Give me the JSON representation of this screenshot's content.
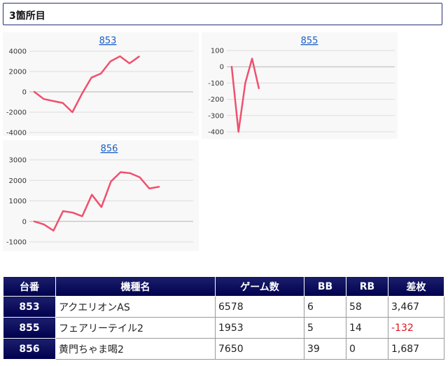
{
  "header": {
    "title": "3箇所目"
  },
  "charts": [
    {
      "link": "853",
      "y_ticks": [
        "4000",
        "2000",
        "0",
        "-2000",
        "-4000"
      ],
      "chart_data": {
        "type": "line",
        "title": "853",
        "ylim": [
          -4000,
          4000
        ],
        "values": [
          0,
          -700,
          -900,
          -1100,
          -2000,
          -200,
          1400,
          1800,
          3000,
          3500,
          2800,
          3467
        ]
      }
    },
    {
      "link": "855",
      "y_ticks": [
        "100",
        "0",
        "-100",
        "-200",
        "-300",
        "-400"
      ],
      "chart_data": {
        "type": "line",
        "title": "855",
        "ylim": [
          -400,
          100
        ],
        "values": [
          0,
          -400,
          -100,
          50,
          -132
        ]
      }
    },
    {
      "link": "856",
      "y_ticks": [
        "3000",
        "2000",
        "1000",
        "0",
        "-1000"
      ],
      "chart_data": {
        "type": "line",
        "title": "856",
        "ylim": [
          -1000,
          3000
        ],
        "values": [
          0,
          -150,
          -450,
          500,
          430,
          250,
          1300,
          700,
          1950,
          2400,
          2350,
          2150,
          1600,
          1687
        ]
      }
    }
  ],
  "table": {
    "headers": [
      "台番",
      "機種名",
      "ゲーム数",
      "BB",
      "RB",
      "差枚"
    ],
    "rows": [
      {
        "unit": "853",
        "machine": "アクエリオンAS",
        "games": "6578",
        "bb": "6",
        "rb": "58",
        "diff": "3,467"
      },
      {
        "unit": "855",
        "machine": "フェアリーテイル2",
        "games": "1953",
        "bb": "5",
        "rb": "14",
        "diff": "-132"
      },
      {
        "unit": "856",
        "machine": "黄門ちゃま喝2",
        "games": "7650",
        "bb": "39",
        "rb": "0",
        "diff": "1,687"
      }
    ]
  },
  "colors": {
    "line": "#f0506e",
    "header_bg": "#00004e",
    "negative": "#e0141e",
    "link": "#1a5fc6"
  }
}
